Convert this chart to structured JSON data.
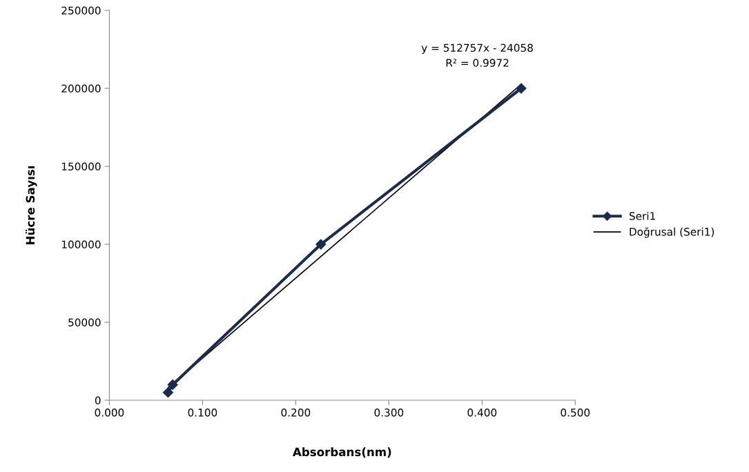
{
  "chart_data": {
    "type": "line",
    "xlabel": "Absorbans(nm)",
    "ylabel": "Hücre Sayısı",
    "x": [
      0.063,
      0.068,
      0.227,
      0.442
    ],
    "series": [
      {
        "name": "Seri1",
        "color": "#1b2d4f",
        "values": [
          5000,
          10000,
          100000,
          200000
        ],
        "marker": "diamond"
      },
      {
        "name": "Doğrusal (Seri1)",
        "color": "#000000",
        "type": "line",
        "x": [
          0.063,
          0.442
        ],
        "values": [
          8000,
          202600
        ],
        "marker": "none"
      }
    ],
    "xlim": [
      0,
      0.5
    ],
    "xticks": [
      {
        "value": 0,
        "label": "0.000"
      },
      {
        "value": 0.1,
        "label": "0.100"
      },
      {
        "value": 0.2,
        "label": "0.200"
      },
      {
        "value": 0.3,
        "label": "0.300"
      },
      {
        "value": 0.4,
        "label": "0.400"
      },
      {
        "value": 0.5,
        "label": "0.500"
      }
    ],
    "ylim": [
      0,
      250000
    ],
    "yticks": [
      0,
      50000,
      100000,
      150000,
      200000,
      250000
    ],
    "annotations": [
      "y = 512757x - 24058\nR² = 0.9972"
    ],
    "grid": false,
    "legend": "right"
  }
}
